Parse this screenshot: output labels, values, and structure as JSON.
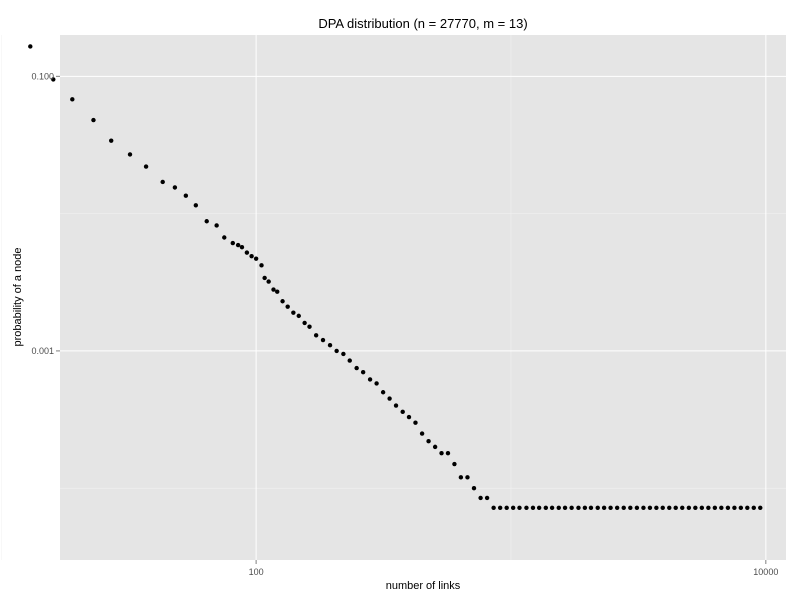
{
  "chart_data": {
    "type": "scatter",
    "title": "DPA distribution (n = 27770, m = 13)",
    "xlabel": "number of links",
    "ylabel": "probability of a node",
    "x_scale": "log10",
    "y_scale": "log10",
    "xlim": [
      17,
      12000
    ],
    "ylim": [
      3e-05,
      0.2
    ],
    "x_major_ticks": [
      {
        "value": 100,
        "label": "100"
      },
      {
        "value": 10000,
        "label": "10000"
      }
    ],
    "x_minor_ticks": [
      10,
      1000
    ],
    "y_major_ticks": [
      {
        "value": 0.1,
        "label": "0.100"
      },
      {
        "value": 0.001,
        "label": "0.001"
      }
    ],
    "y_minor_ticks": [
      0.01,
      0.0001
    ],
    "grid": true,
    "legend": "none",
    "point_color": "#000000",
    "panel_color": "#e5e5e5",
    "x": [
      13,
      16,
      19,
      23,
      27,
      32,
      37,
      43,
      48,
      53,
      58,
      64,
      70,
      75,
      81,
      85,
      88,
      92,
      96,
      100,
      105,
      108,
      112,
      117,
      121,
      127,
      133,
      140,
      147,
      155,
      162,
      172,
      183,
      195,
      207,
      220,
      233,
      248,
      263,
      280,
      297,
      315,
      334,
      354,
      376,
      398,
      422,
      448,
      475,
      504,
      534,
      566,
      600,
      636,
      675,
      716,
      760,
      806,
      855,
      907,
      962,
      1020,
      1080,
      1150,
      1220,
      1290,
      1370,
      1450,
      1540,
      1630,
      1730,
      1840,
      1950,
      2060,
      2190,
      2320,
      2460,
      2610,
      2770,
      2940,
      3120,
      3310,
      3510,
      3720,
      3940,
      4180,
      4430,
      4700,
      4990,
      5290,
      5610,
      5950,
      6310,
      6690,
      7100,
      7530,
      7980,
      8460,
      8970,
      9510
    ],
    "y": [
      0.165,
      0.095,
      0.068,
      0.048,
      0.034,
      0.027,
      0.022,
      0.017,
      0.0155,
      0.0135,
      0.0115,
      0.0088,
      0.0082,
      0.0067,
      0.0061,
      0.0059,
      0.0057,
      0.0052,
      0.0049,
      0.0047,
      0.0042,
      0.0034,
      0.0032,
      0.0028,
      0.0027,
      0.0023,
      0.0021,
      0.0019,
      0.0018,
      0.0016,
      0.0015,
      0.0013,
      0.0012,
      0.0011,
      0.001,
      0.00095,
      0.00085,
      0.00075,
      0.0007,
      0.00062,
      0.00058,
      0.0005,
      0.00045,
      0.0004,
      0.00036,
      0.00033,
      0.0003,
      0.00025,
      0.00022,
      0.0002,
      0.00018,
      0.00018,
      0.00015,
      0.00012,
      0.00012,
      0.0001,
      8.5e-05,
      8.5e-05,
      7.2e-05,
      7.2e-05,
      7.2e-05,
      7.2e-05,
      7.2e-05,
      7.2e-05,
      7.2e-05,
      7.2e-05,
      7.2e-05,
      7.2e-05,
      7.2e-05,
      7.2e-05,
      7.2e-05,
      7.2e-05,
      7.2e-05,
      7.2e-05,
      7.2e-05,
      7.2e-05,
      7.2e-05,
      7.2e-05,
      7.2e-05,
      7.2e-05,
      7.2e-05,
      7.2e-05,
      7.2e-05,
      7.2e-05,
      7.2e-05,
      7.2e-05,
      7.2e-05,
      7.2e-05,
      7.2e-05,
      7.2e-05,
      7.2e-05,
      7.2e-05,
      7.2e-05,
      7.2e-05,
      7.2e-05,
      7.2e-05,
      7.2e-05,
      7.2e-05,
      7.2e-05,
      7.2e-05
    ]
  }
}
